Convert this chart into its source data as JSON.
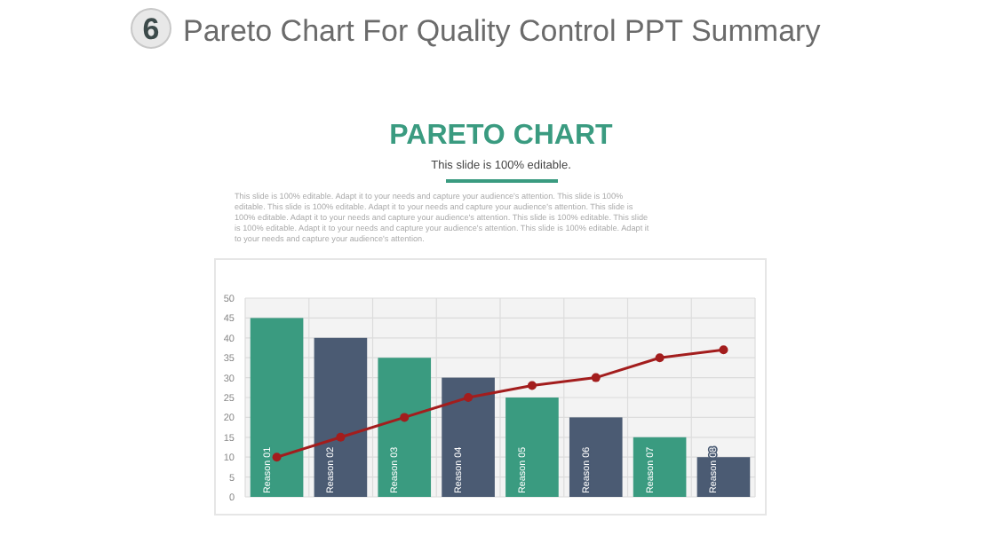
{
  "chart_data": {
    "type": "bar",
    "title": "Pareto Chart For Quality Control PPT Summary",
    "subtitle": "PARETO CHART",
    "annotations": [
      "6",
      "This slide is 100% editable.",
      "This slide is 100% editable. Adapt it to your needs and capture your audience's attention. This slide is 100% editable. This slide is 100% editable. Adapt it to your needs and capture your audience's attention. This slide is 100% editable. Adapt it to your needs and capture your audience's attention. This slide is 100% editable. This slide is 100% editable. Adapt it to your needs and capture your audience's attention. This slide is 100% editable. Adapt it to your needs and capture your audience's attention."
    ],
    "categories": [
      "Reason 01",
      "Reason 02",
      "Reason 03",
      "Reason 04",
      "Reason 05",
      "Reason 06",
      "Reason 07",
      "Reason 08"
    ],
    "series": [
      {
        "colors": [
          "#3a9b80",
          "#4b5b73",
          "#3a9b80",
          "#4b5b73",
          "#3a9b80",
          "#4b5b73",
          "#3a9b80",
          "#4b5b73"
        ],
        "values": [
          45,
          40,
          35,
          30,
          25,
          20,
          15,
          10
        ]
      },
      {
        "type": "line",
        "color": "#a31d1d",
        "values": [
          10,
          15,
          20,
          25,
          28,
          30,
          35,
          37
        ]
      }
    ],
    "ylim": [
      0,
      50
    ],
    "yticks": [
      0,
      5,
      10,
      15,
      20,
      25,
      30,
      35,
      40,
      45,
      50
    ],
    "grid": true,
    "marker": "circle",
    "line_style": "solid"
  }
}
